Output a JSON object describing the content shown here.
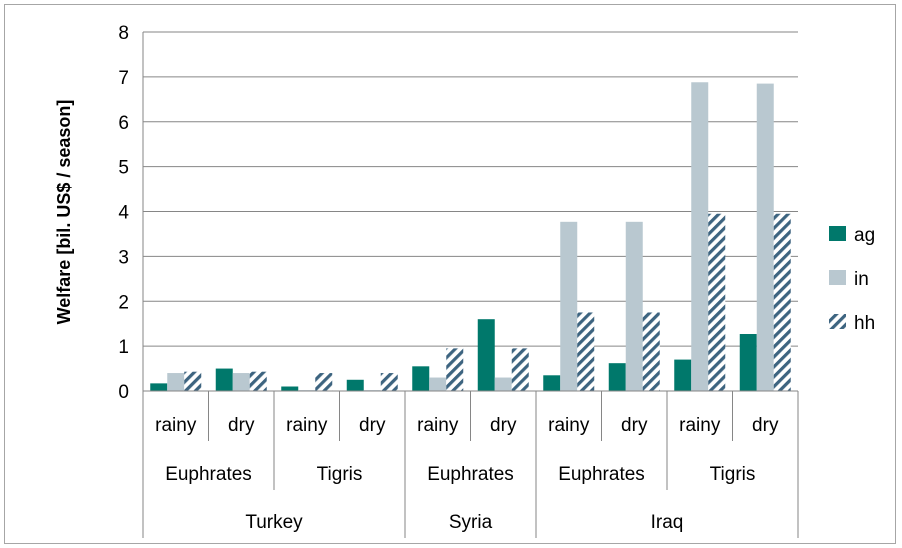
{
  "chart_data": {
    "type": "bar",
    "title": "",
    "ylabel": "Welfare [bil. US$ / season]",
    "ylim": [
      0,
      8
    ],
    "yticks": [
      0,
      1,
      2,
      3,
      4,
      5,
      6,
      7,
      8
    ],
    "grid": true,
    "legend_position": "right",
    "categories": [
      {
        "season": "rainy",
        "river": "Euphrates",
        "country": "Turkey"
      },
      {
        "season": "dry",
        "river": "Euphrates",
        "country": "Turkey"
      },
      {
        "season": "rainy",
        "river": "Tigris",
        "country": "Turkey"
      },
      {
        "season": "dry",
        "river": "Tigris",
        "country": "Turkey"
      },
      {
        "season": "rainy",
        "river": "Euphrates",
        "country": "Syria"
      },
      {
        "season": "dry",
        "river": "Euphrates",
        "country": "Syria"
      },
      {
        "season": "rainy",
        "river": "Euphrates",
        "country": "Iraq"
      },
      {
        "season": "dry",
        "river": "Euphrates",
        "country": "Iraq"
      },
      {
        "season": "rainy",
        "river": "Tigris",
        "country": "Iraq"
      },
      {
        "season": "dry",
        "river": "Tigris",
        "country": "Iraq"
      }
    ],
    "river_groups": [
      {
        "label": "Euphrates",
        "count": 2
      },
      {
        "label": "Tigris",
        "count": 2
      },
      {
        "label": "Euphrates",
        "count": 2
      },
      {
        "label": "Euphrates",
        "count": 2
      },
      {
        "label": "Tigris",
        "count": 2
      }
    ],
    "country_groups": [
      {
        "label": "Turkey",
        "count": 4
      },
      {
        "label": "Syria",
        "count": 2
      },
      {
        "label": "Iraq",
        "count": 4
      }
    ],
    "series": [
      {
        "name": "ag",
        "color": "#00786b",
        "pattern": "solid",
        "values": [
          0.17,
          0.5,
          0.1,
          0.25,
          0.55,
          1.6,
          0.35,
          0.62,
          0.7,
          1.27
        ]
      },
      {
        "name": "in",
        "color": "#b9c8d0",
        "pattern": "solid",
        "values": [
          0.4,
          0.4,
          0.02,
          0.02,
          0.3,
          0.3,
          3.77,
          3.77,
          6.88,
          6.85
        ]
      },
      {
        "name": "hh",
        "color": "#3d6480",
        "pattern": "diagonal-hatch",
        "values": [
          0.43,
          0.43,
          0.4,
          0.4,
          0.95,
          0.95,
          1.75,
          1.75,
          3.95,
          3.95
        ]
      }
    ]
  }
}
